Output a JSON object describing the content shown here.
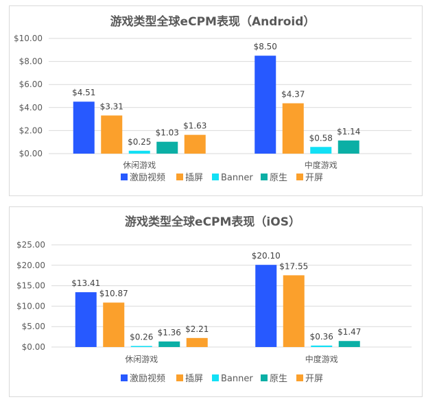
{
  "colors": {
    "激励视频": "#2759FF",
    "插屏": "#FBA02C",
    "Banner": "#12E0F5",
    "原生": "#0BAFA5",
    "开屏": "#FBA02C"
  },
  "chart_data": [
    {
      "type": "bar",
      "title": "游戏类型全球eCPM表现（Android）",
      "categories": [
        "休闲游戏",
        "中度游戏"
      ],
      "ylim": [
        0,
        10
      ],
      "yticks": [
        "$0.00",
        "$2.00",
        "$4.00",
        "$6.00",
        "$8.00",
        "$10.00"
      ],
      "grid": true,
      "legend": "bottom",
      "series": [
        {
          "name": "激励视频",
          "values": [
            4.51,
            8.5
          ],
          "labels": [
            "$4.51",
            "$8.50"
          ]
        },
        {
          "name": "插屏",
          "values": [
            3.31,
            4.37
          ],
          "labels": [
            "$3.31",
            "$4.37"
          ]
        },
        {
          "name": "Banner",
          "values": [
            0.25,
            0.58
          ],
          "labels": [
            "$0.25",
            "$0.58"
          ]
        },
        {
          "name": "原生",
          "values": [
            1.03,
            1.14
          ],
          "labels": [
            "$1.03",
            "$1.14"
          ]
        },
        {
          "name": "开屏",
          "values": [
            1.63,
            null
          ],
          "labels": [
            "$1.63",
            null
          ]
        }
      ]
    },
    {
      "type": "bar",
      "title": "游戏类型全球eCPM表现（iOS）",
      "categories": [
        "休闲游戏",
        "中度游戏"
      ],
      "ylim": [
        0,
        25
      ],
      "yticks": [
        "$0.00",
        "$5.00",
        "$10.00",
        "$15.00",
        "$20.00",
        "$25.00"
      ],
      "grid": true,
      "legend": "bottom",
      "series": [
        {
          "name": "激励视频",
          "values": [
            13.41,
            20.1
          ],
          "labels": [
            "$13.41",
            "$20.10"
          ]
        },
        {
          "name": "插屏",
          "values": [
            10.87,
            17.55
          ],
          "labels": [
            "$10.87",
            "$17.55"
          ]
        },
        {
          "name": "Banner",
          "values": [
            0.26,
            0.36
          ],
          "labels": [
            "$0.26",
            "$0.36"
          ]
        },
        {
          "name": "原生",
          "values": [
            1.36,
            1.47
          ],
          "labels": [
            "$1.36",
            "$1.47"
          ]
        },
        {
          "name": "开屏",
          "values": [
            2.21,
            null
          ],
          "labels": [
            "$2.21",
            null
          ]
        }
      ]
    }
  ]
}
